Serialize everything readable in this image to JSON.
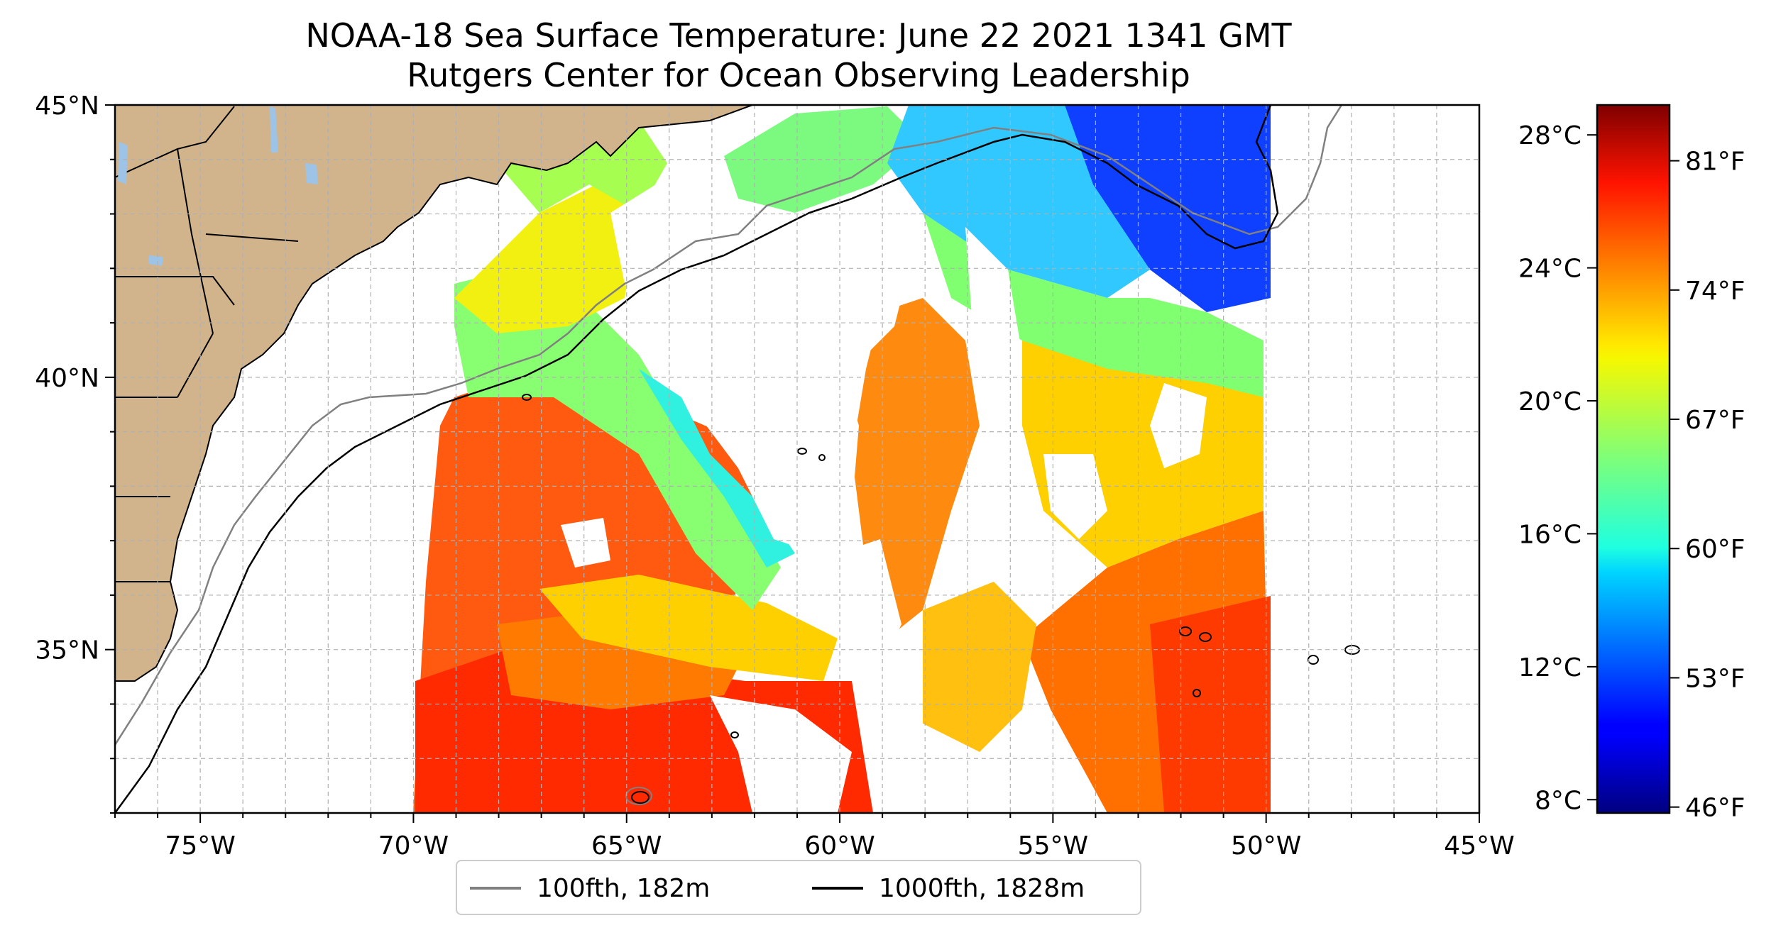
{
  "title": "NOAA-18 Sea Surface Temperature: June 22 2021 1341 GMT",
  "subtitle": "Rutgers Center for Ocean Observing Leadership",
  "map": {
    "extent": {
      "lon_min": -77,
      "lon_max": -45,
      "lat_min": 32,
      "lat_max": 45
    },
    "lon_ticks": [
      {
        "value": -75,
        "label": "75°W"
      },
      {
        "value": -70,
        "label": "70°W"
      },
      {
        "value": -65,
        "label": "65°W"
      },
      {
        "value": -60,
        "label": "60°W"
      },
      {
        "value": -55,
        "label": "55°W"
      },
      {
        "value": -50,
        "label": "50°W"
      },
      {
        "value": -45,
        "label": "45°W"
      }
    ],
    "lat_ticks": [
      {
        "value": 45,
        "label": "45°N"
      },
      {
        "value": 40,
        "label": "40°N"
      },
      {
        "value": 35,
        "label": "35°N"
      }
    ],
    "gridlines": true,
    "colors": {
      "land": "#d2b48c",
      "lakes": "#9dc3e6",
      "isobath_100": "#808080",
      "isobath_1000": "#000000"
    }
  },
  "legend": {
    "placement": "bottom-center",
    "items": [
      {
        "label": "100fth, 182m",
        "color": "#808080"
      },
      {
        "label": "1000fth, 1828m",
        "color": "#000000"
      }
    ]
  },
  "colorbar": {
    "colormap": "jet",
    "celsius_ticks": [
      "28°C",
      "24°C",
      "20°C",
      "16°C",
      "12°C",
      "8°C"
    ],
    "fahrenheit_ticks": [
      "81°F",
      "74°F",
      "67°F",
      "60°F",
      "53°F",
      "46°F"
    ]
  }
}
